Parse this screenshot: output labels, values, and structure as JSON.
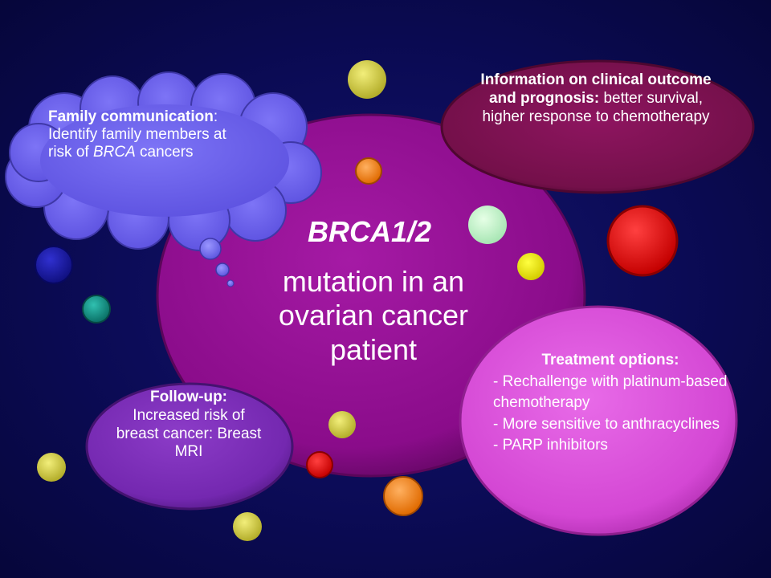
{
  "center": {
    "title": "BRCA1/2",
    "subtitle_lines": [
      "mutation in an",
      "ovarian cancer",
      "patient"
    ]
  },
  "family": {
    "title": "Family communication",
    "colon": ":",
    "body_1": " Identify family members at risk of ",
    "body_italic": "BRCA",
    "body_2": " cancers"
  },
  "info": {
    "title": "Information on clinical outcome and prognosis:",
    "body": " better survival, higher response to chemotherapy"
  },
  "treatment": {
    "title": "Treatment options:",
    "items": [
      "- Rechallenge with platinum-based chemotherapy",
      "- More sensitive to anthracyclines",
      "- PARP inhibitors"
    ]
  },
  "followup": {
    "title": "Follow-up:",
    "body": "Increased risk of breast cancer: Breast MRI"
  },
  "colors": {
    "center_bubble": "#8e0f8e",
    "cloud": "#6d62f0",
    "info_bubble": "#7c0f4f",
    "treatment_bubble": "#d64ad6",
    "followup_bubble": "#7a2bb8",
    "background": "#0b0b55"
  }
}
